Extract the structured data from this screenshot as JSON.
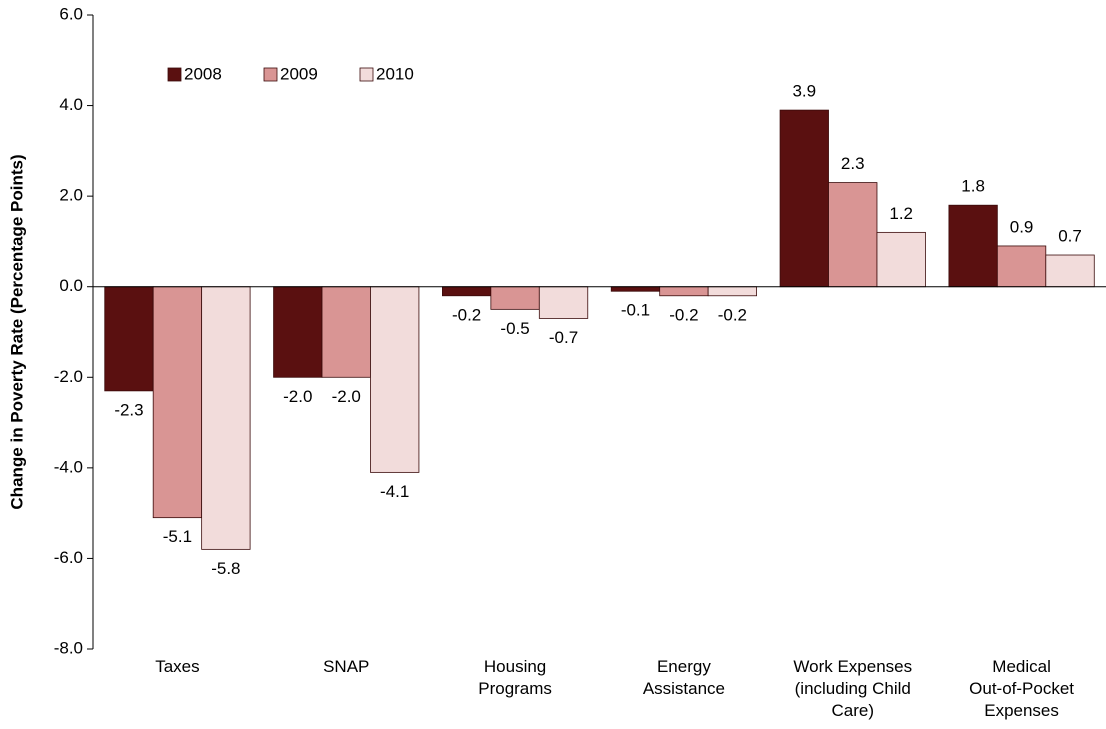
{
  "chart_data": {
    "type": "bar",
    "y_label": "Change in Poverty Rate (Percentage Points)",
    "categories": [
      "Taxes",
      "SNAP",
      "Housing\nPrograms",
      "Energy\nAssistance",
      "Work Expenses\n(including Child\nCare)",
      "Medical\nOut-of-Pocket\nExpenses"
    ],
    "series": [
      {
        "name": "2008",
        "color": "#5a1010",
        "values": [
          -2.3,
          -2.0,
          -0.2,
          -0.1,
          3.9,
          1.8
        ],
        "value_labels": [
          "-2.3",
          "-2.0",
          "-0.2",
          "-0.1",
          "3.9",
          "1.8"
        ]
      },
      {
        "name": "2009",
        "color": "#d99594",
        "values": [
          -5.1,
          -2.0,
          -0.5,
          -0.2,
          2.3,
          0.9
        ],
        "value_labels": [
          "-5.1",
          "-2.0",
          "-0.5",
          "-0.2",
          "2.3",
          "0.9"
        ]
      },
      {
        "name": "2010",
        "color": "#f2dcdb",
        "values": [
          -5.8,
          -4.1,
          -0.7,
          -0.2,
          1.2,
          0.7
        ],
        "value_labels": [
          "-5.8",
          "-4.1",
          "-0.7",
          "-0.2",
          "1.2",
          "0.7"
        ]
      }
    ],
    "ylim": [
      -8,
      6
    ],
    "yticks": [
      {
        "value": -8,
        "label": "-8.0"
      },
      {
        "value": -6,
        "label": "-6.0"
      },
      {
        "value": -4,
        "label": "-4.0"
      },
      {
        "value": -2,
        "label": "-2.0"
      },
      {
        "value": 0,
        "label": "0.0"
      },
      {
        "value": 2,
        "label": "2.0"
      },
      {
        "value": 4,
        "label": "4.0"
      },
      {
        "value": 6,
        "label": "6.0"
      }
    ],
    "legend": "upper left",
    "grid": false
  }
}
